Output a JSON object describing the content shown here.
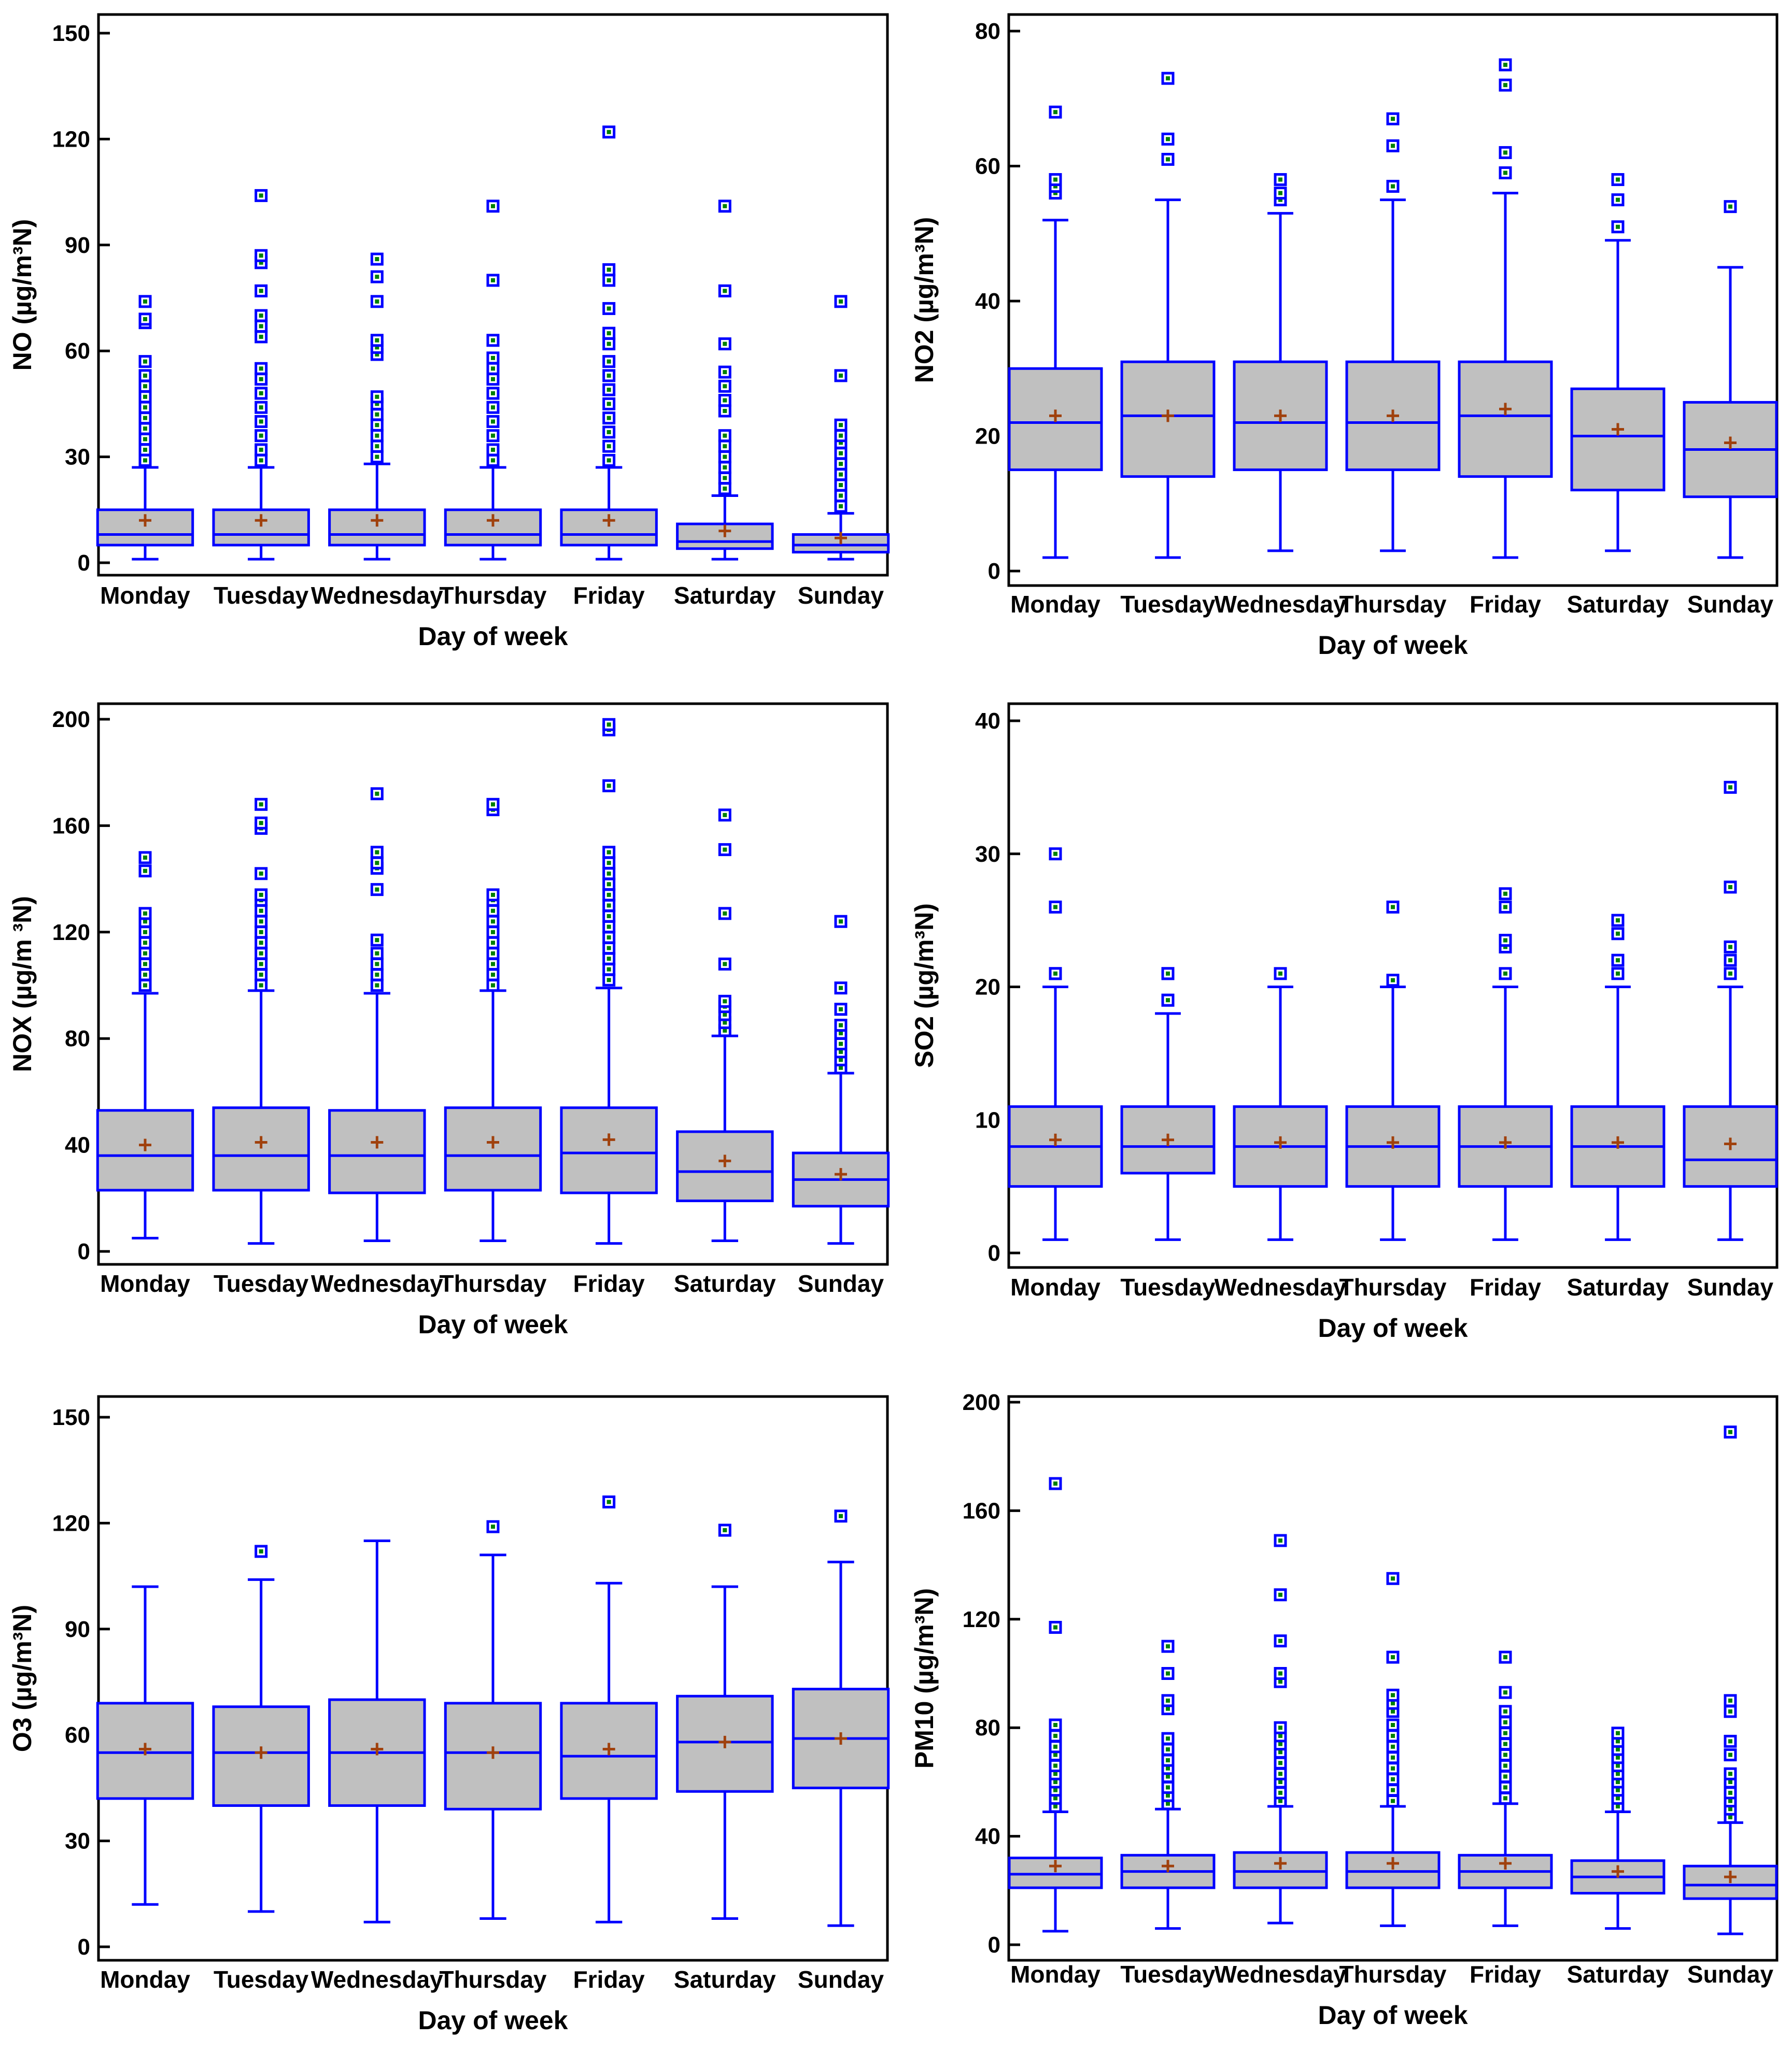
{
  "colors": {
    "box_fill": "#c0c0c0",
    "box_edge": "#0000ff",
    "mean_marker": "#a0410d",
    "outlier_fill": "#008000",
    "frame": "#000000"
  },
  "chart_data": [
    {
      "type": "box",
      "xlabel": "Day of week",
      "ylabel": "NO (µg/m³N)",
      "ylim": [
        0,
        150
      ],
      "yticks": [
        0,
        30,
        60,
        90,
        120,
        150
      ],
      "categories": [
        "Monday",
        "Tuesday",
        "Wednesday",
        "Thursday",
        "Friday",
        "Saturday",
        "Sunday"
      ],
      "boxes": [
        {
          "min": 1,
          "q1": 5,
          "median": 8,
          "q3": 15,
          "max": 27,
          "mean": 12,
          "outliers": [
            29,
            32,
            35,
            38,
            41,
            44,
            47,
            50,
            53,
            57,
            68,
            69,
            74
          ]
        },
        {
          "min": 1,
          "q1": 5,
          "median": 8,
          "q3": 15,
          "max": 27,
          "mean": 12,
          "outliers": [
            29,
            32,
            36,
            40,
            44,
            48,
            52,
            55,
            64,
            67,
            70,
            77,
            85,
            87,
            104
          ]
        },
        {
          "min": 1,
          "q1": 5,
          "median": 8,
          "q3": 15,
          "max": 28,
          "mean": 12,
          "outliers": [
            30,
            33,
            36,
            39,
            42,
            45,
            47,
            59,
            61,
            63,
            74,
            81,
            86
          ]
        },
        {
          "min": 1,
          "q1": 5,
          "median": 8,
          "q3": 15,
          "max": 27,
          "mean": 12,
          "outliers": [
            29,
            32,
            36,
            40,
            44,
            48,
            52,
            55,
            58,
            63,
            80,
            101
          ]
        },
        {
          "min": 1,
          "q1": 5,
          "median": 8,
          "q3": 15,
          "max": 27,
          "mean": 12,
          "outliers": [
            29,
            33,
            37,
            41,
            45,
            49,
            53,
            57,
            62,
            65,
            72,
            80,
            83,
            122
          ]
        },
        {
          "min": 1,
          "q1": 4,
          "median": 6,
          "q3": 11,
          "max": 19,
          "mean": 9,
          "outliers": [
            21,
            24,
            27,
            30,
            33,
            36,
            43,
            46,
            50,
            54,
            62,
            77,
            101
          ]
        },
        {
          "min": 1,
          "q1": 3,
          "median": 5,
          "q3": 8,
          "max": 14,
          "mean": 7,
          "outliers": [
            16,
            19,
            22,
            25,
            28,
            31,
            34,
            36,
            39,
            53,
            74
          ]
        }
      ]
    },
    {
      "type": "box",
      "xlabel": "Day of week",
      "ylabel": "NO2 (µg/m³N)",
      "ylim": [
        0,
        80
      ],
      "yticks": [
        0,
        20,
        40,
        60,
        80
      ],
      "categories": [
        "Monday",
        "Tuesday",
        "Wednesday",
        "Thursday",
        "Friday",
        "Saturday",
        "Sunday"
      ],
      "boxes": [
        {
          "min": 2,
          "q1": 15,
          "median": 22,
          "q3": 30,
          "max": 52,
          "mean": 23,
          "outliers": [
            56,
            57,
            58,
            68
          ]
        },
        {
          "min": 2,
          "q1": 14,
          "median": 23,
          "q3": 31,
          "max": 55,
          "mean": 23,
          "outliers": [
            61,
            64,
            73
          ]
        },
        {
          "min": 3,
          "q1": 15,
          "median": 22,
          "q3": 31,
          "max": 53,
          "mean": 23,
          "outliers": [
            55,
            56,
            58
          ]
        },
        {
          "min": 3,
          "q1": 15,
          "median": 22,
          "q3": 31,
          "max": 55,
          "mean": 23,
          "outliers": [
            57,
            63,
            67
          ]
        },
        {
          "min": 2,
          "q1": 14,
          "median": 23,
          "q3": 31,
          "max": 56,
          "mean": 24,
          "outliers": [
            59,
            62,
            72,
            75
          ]
        },
        {
          "min": 3,
          "q1": 12,
          "median": 20,
          "q3": 27,
          "max": 49,
          "mean": 21,
          "outliers": [
            51,
            55,
            58
          ]
        },
        {
          "min": 2,
          "q1": 11,
          "median": 18,
          "q3": 25,
          "max": 45,
          "mean": 19,
          "outliers": [
            54
          ]
        }
      ]
    },
    {
      "type": "box",
      "xlabel": "Day of week",
      "ylabel": "NOX (µg/m ³N)",
      "ylim": [
        0,
        200
      ],
      "yticks": [
        0,
        40,
        80,
        120,
        160,
        200
      ],
      "categories": [
        "Monday",
        "Tuesday",
        "Wednesday",
        "Thursday",
        "Friday",
        "Saturday",
        "Sunday"
      ],
      "boxes": [
        {
          "min": 5,
          "q1": 23,
          "median": 36,
          "q3": 53,
          "max": 97,
          "mean": 40,
          "outliers": [
            100,
            104,
            108,
            112,
            116,
            120,
            124,
            127,
            143,
            148
          ]
        },
        {
          "min": 3,
          "q1": 23,
          "median": 36,
          "q3": 54,
          "max": 98,
          "mean": 41,
          "outliers": [
            100,
            104,
            108,
            112,
            116,
            120,
            124,
            128,
            132,
            134,
            142,
            159,
            161,
            168
          ]
        },
        {
          "min": 4,
          "q1": 22,
          "median": 36,
          "q3": 53,
          "max": 97,
          "mean": 41,
          "outliers": [
            100,
            104,
            108,
            112,
            117,
            136,
            144,
            146,
            150,
            172
          ]
        },
        {
          "min": 4,
          "q1": 23,
          "median": 36,
          "q3": 54,
          "max": 98,
          "mean": 41,
          "outliers": [
            100,
            104,
            108,
            112,
            116,
            120,
            124,
            128,
            132,
            134,
            166,
            168
          ]
        },
        {
          "min": 3,
          "q1": 22,
          "median": 37,
          "q3": 54,
          "max": 99,
          "mean": 42,
          "outliers": [
            102,
            106,
            110,
            114,
            118,
            122,
            126,
            130,
            134,
            138,
            142,
            146,
            150,
            175,
            196,
            198
          ]
        },
        {
          "min": 4,
          "q1": 19,
          "median": 30,
          "q3": 45,
          "max": 81,
          "mean": 34,
          "outliers": [
            83,
            86,
            89,
            92,
            94,
            108,
            127,
            151,
            164
          ]
        },
        {
          "min": 3,
          "q1": 17,
          "median": 27,
          "q3": 37,
          "max": 67,
          "mean": 29,
          "outliers": [
            69,
            72,
            75,
            78,
            82,
            85,
            91,
            99,
            124
          ]
        }
      ]
    },
    {
      "type": "box",
      "xlabel": "Day of week",
      "ylabel": "SO2 (µg/m³N)",
      "ylim": [
        0,
        40
      ],
      "yticks": [
        0,
        10,
        20,
        30,
        40
      ],
      "categories": [
        "Monday",
        "Tuesday",
        "Wednesday",
        "Thursday",
        "Friday",
        "Saturday",
        "Sunday"
      ],
      "boxes": [
        {
          "min": 1,
          "q1": 5,
          "median": 8,
          "q3": 11,
          "max": 20,
          "mean": 8.5,
          "outliers": [
            21,
            21,
            26,
            30
          ]
        },
        {
          "min": 1,
          "q1": 6,
          "median": 8,
          "q3": 11,
          "max": 18,
          "mean": 8.5,
          "outliers": [
            19,
            19,
            21,
            21
          ]
        },
        {
          "min": 1,
          "q1": 5,
          "median": 8,
          "q3": 11,
          "max": 20,
          "mean": 8.3,
          "outliers": [
            21
          ]
        },
        {
          "min": 1,
          "q1": 5,
          "median": 8,
          "q3": 11,
          "max": 20,
          "mean": 8.3,
          "outliers": [
            20.5,
            26
          ]
        },
        {
          "min": 1,
          "q1": 5,
          "median": 8,
          "q3": 11,
          "max": 20,
          "mean": 8.3,
          "outliers": [
            21,
            23,
            23.5,
            26,
            27
          ]
        },
        {
          "min": 1,
          "q1": 5,
          "median": 8,
          "q3": 11,
          "max": 20,
          "mean": 8.3,
          "outliers": [
            21,
            22,
            24,
            25
          ]
        },
        {
          "min": 1,
          "q1": 5,
          "median": 7,
          "q3": 11,
          "max": 20,
          "mean": 8.2,
          "outliers": [
            21,
            22,
            23,
            27.5,
            35
          ]
        }
      ]
    },
    {
      "type": "box",
      "xlabel": "Day of week",
      "ylabel": "O3 (µg/m³N)",
      "ylim": [
        0,
        150
      ],
      "yticks": [
        0,
        30,
        60,
        90,
        120,
        150
      ],
      "categories": [
        "Monday",
        "Tuesday",
        "Wednesday",
        "Thursday",
        "Friday",
        "Saturday",
        "Sunday"
      ],
      "boxes": [
        {
          "min": 12,
          "q1": 42,
          "median": 55,
          "q3": 69,
          "max": 102,
          "mean": 56,
          "outliers": []
        },
        {
          "min": 10,
          "q1": 40,
          "median": 55,
          "q3": 68,
          "max": 104,
          "mean": 55,
          "outliers": [
            112
          ]
        },
        {
          "min": 7,
          "q1": 40,
          "median": 55,
          "q3": 70,
          "max": 115,
          "mean": 56,
          "outliers": []
        },
        {
          "min": 8,
          "q1": 39,
          "median": 55,
          "q3": 69,
          "max": 111,
          "mean": 55,
          "outliers": [
            119
          ]
        },
        {
          "min": 7,
          "q1": 42,
          "median": 54,
          "q3": 69,
          "max": 103,
          "mean": 56,
          "outliers": [
            126
          ]
        },
        {
          "min": 8,
          "q1": 44,
          "median": 58,
          "q3": 71,
          "max": 102,
          "mean": 58,
          "outliers": [
            118
          ]
        },
        {
          "min": 6,
          "q1": 45,
          "median": 59,
          "q3": 73,
          "max": 109,
          "mean": 59,
          "outliers": [
            122
          ]
        }
      ]
    },
    {
      "type": "box",
      "xlabel": "Day of week",
      "ylabel": "PM10 (µg/m³N)",
      "ylim": [
        0,
        200
      ],
      "yticks": [
        0,
        40,
        80,
        120,
        160,
        200
      ],
      "categories": [
        "Monday",
        "Tuesday",
        "Wednesday",
        "Thursday",
        "Friday",
        "Saturday",
        "Sunday"
      ],
      "boxes": [
        {
          "min": 5,
          "q1": 21,
          "median": 26,
          "q3": 32,
          "max": 49,
          "mean": 29,
          "outliers": [
            51,
            54,
            57,
            60,
            63,
            66,
            70,
            73,
            77,
            81,
            117,
            170
          ]
        },
        {
          "min": 6,
          "q1": 21,
          "median": 27,
          "q3": 33,
          "max": 50,
          "mean": 29,
          "outliers": [
            52,
            55,
            58,
            62,
            65,
            68,
            72,
            76,
            87,
            90,
            100,
            110
          ]
        },
        {
          "min": 8,
          "q1": 21,
          "median": 27,
          "q3": 34,
          "max": 51,
          "mean": 30,
          "outliers": [
            53,
            56,
            60,
            63,
            67,
            71,
            74,
            77,
            80,
            97,
            100,
            112,
            129,
            149
          ]
        },
        {
          "min": 7,
          "q1": 21,
          "median": 27,
          "q3": 34,
          "max": 51,
          "mean": 30,
          "outliers": [
            53,
            57,
            61,
            65,
            69,
            73,
            77,
            81,
            86,
            89,
            92,
            106,
            135
          ]
        },
        {
          "min": 7,
          "q1": 21,
          "median": 27,
          "q3": 33,
          "max": 52,
          "mean": 30,
          "outliers": [
            54,
            58,
            62,
            66,
            70,
            74,
            78,
            82,
            86,
            93,
            106
          ]
        },
        {
          "min": 6,
          "q1": 19,
          "median": 25,
          "q3": 31,
          "max": 49,
          "mean": 27,
          "outliers": [
            51,
            54,
            57,
            60,
            63,
            66,
            69,
            72,
            75,
            78
          ]
        },
        {
          "min": 4,
          "q1": 17,
          "median": 22,
          "q3": 29,
          "max": 45,
          "mean": 25,
          "outliers": [
            47,
            50,
            53,
            56,
            60,
            63,
            70,
            75,
            86,
            90,
            189
          ]
        }
      ]
    }
  ]
}
